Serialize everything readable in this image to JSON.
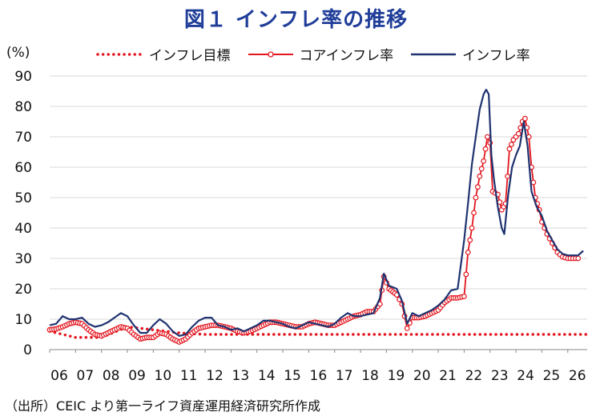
{
  "chart_data": {
    "type": "line",
    "title": "図１ インフレ率の推移",
    "ylabel": "(%)",
    "source": "（出所）CEIC より第一ライフ資産運用経済研究所作成",
    "ylim": [
      0,
      90
    ],
    "yticks": [
      0,
      10,
      20,
      30,
      40,
      50,
      60,
      70,
      80,
      90
    ],
    "xlim": [
      2006.0,
      2026.75
    ],
    "xtick_labels": [
      "06",
      "07",
      "08",
      "09",
      "10",
      "11",
      "12",
      "13",
      "14",
      "15",
      "16",
      "17",
      "18",
      "19",
      "20",
      "21",
      "22",
      "23",
      "24",
      "25",
      "26"
    ],
    "grid": "horizontal",
    "legend_position": "top",
    "series": [
      {
        "name": "インフレ目標",
        "style": "dotted",
        "color": "#e3161f",
        "points": [
          [
            2006.0,
            6.0
          ],
          [
            2006.5,
            5.0
          ],
          [
            2007.0,
            4.0
          ],
          [
            2008.0,
            4.0
          ],
          [
            2009.0,
            7.5
          ],
          [
            2010.0,
            6.5
          ],
          [
            2011.0,
            5.5
          ],
          [
            2012.0,
            5.0
          ],
          [
            2026.75,
            5.0
          ]
        ]
      },
      {
        "name": "コアインフレ率",
        "style": "line-marker",
        "color": "#e3161f",
        "points": [
          [
            2006.0,
            6.5
          ],
          [
            2006.25,
            6.8
          ],
          [
            2006.5,
            7.5
          ],
          [
            2006.75,
            8.5
          ],
          [
            2007.0,
            9.0
          ],
          [
            2007.25,
            8.5
          ],
          [
            2007.5,
            6.5
          ],
          [
            2007.75,
            5.0
          ],
          [
            2008.0,
            4.5
          ],
          [
            2008.25,
            5.5
          ],
          [
            2008.5,
            6.5
          ],
          [
            2008.75,
            7.5
          ],
          [
            2009.0,
            7.0
          ],
          [
            2009.25,
            5.0
          ],
          [
            2009.5,
            3.5
          ],
          [
            2009.75,
            4.0
          ],
          [
            2010.0,
            4.0
          ],
          [
            2010.25,
            5.5
          ],
          [
            2010.5,
            5.0
          ],
          [
            2010.75,
            3.5
          ],
          [
            2011.0,
            2.5
          ],
          [
            2011.25,
            3.5
          ],
          [
            2011.5,
            5.5
          ],
          [
            2011.75,
            7.0
          ],
          [
            2012.0,
            7.5
          ],
          [
            2012.25,
            8.0
          ],
          [
            2012.5,
            8.0
          ],
          [
            2012.75,
            7.5
          ],
          [
            2013.0,
            7.0
          ],
          [
            2013.25,
            6.0
          ],
          [
            2013.5,
            5.5
          ],
          [
            2013.75,
            6.0
          ],
          [
            2014.0,
            7.0
          ],
          [
            2014.25,
            8.0
          ],
          [
            2014.5,
            9.0
          ],
          [
            2014.75,
            9.0
          ],
          [
            2015.0,
            8.5
          ],
          [
            2015.25,
            8.0
          ],
          [
            2015.5,
            7.5
          ],
          [
            2015.75,
            7.5
          ],
          [
            2016.0,
            8.5
          ],
          [
            2016.25,
            9.0
          ],
          [
            2016.5,
            8.5
          ],
          [
            2016.75,
            8.0
          ],
          [
            2017.0,
            8.0
          ],
          [
            2017.25,
            9.0
          ],
          [
            2017.5,
            10.0
          ],
          [
            2017.75,
            11.0
          ],
          [
            2018.0,
            11.5
          ],
          [
            2018.25,
            12.5
          ],
          [
            2018.5,
            12.5
          ],
          [
            2018.75,
            15.0
          ],
          [
            2018.9,
            24.0
          ],
          [
            2019.1,
            20.0
          ],
          [
            2019.4,
            18.0
          ],
          [
            2019.6,
            15.0
          ],
          [
            2019.8,
            7.0
          ],
          [
            2020.0,
            10.5
          ],
          [
            2020.25,
            10.5
          ],
          [
            2020.5,
            11.0
          ],
          [
            2020.75,
            12.0
          ],
          [
            2021.0,
            13.0
          ],
          [
            2021.25,
            15.5
          ],
          [
            2021.5,
            17.0
          ],
          [
            2021.75,
            17.0
          ],
          [
            2022.0,
            17.5
          ],
          [
            2022.15,
            32.0
          ],
          [
            2022.3,
            40.0
          ],
          [
            2022.45,
            50.0
          ],
          [
            2022.6,
            57.0
          ],
          [
            2022.75,
            62.0
          ],
          [
            2022.9,
            70.0
          ],
          [
            2023.0,
            68.0
          ],
          [
            2023.1,
            52.0
          ],
          [
            2023.3,
            51.0
          ],
          [
            2023.45,
            46.0
          ],
          [
            2023.6,
            48.0
          ],
          [
            2023.75,
            66.0
          ],
          [
            2023.9,
            69.0
          ],
          [
            2024.1,
            71.0
          ],
          [
            2024.25,
            75.0
          ],
          [
            2024.35,
            76.0
          ],
          [
            2024.5,
            70.0
          ],
          [
            2024.6,
            60.0
          ],
          [
            2024.75,
            50.0
          ],
          [
            2024.9,
            46.0
          ],
          [
            2025.0,
            42.0
          ],
          [
            2025.2,
            38.0
          ],
          [
            2025.4,
            35.0
          ],
          [
            2025.6,
            32.0
          ],
          [
            2025.8,
            30.5
          ],
          [
            2026.0,
            30.0
          ],
          [
            2026.2,
            30.0
          ],
          [
            2026.4,
            30.0
          ]
        ]
      },
      {
        "name": "インフレ率",
        "style": "line",
        "color": "#1f3370",
        "points": [
          [
            2006.0,
            8.0
          ],
          [
            2006.25,
            8.5
          ],
          [
            2006.5,
            11.0
          ],
          [
            2006.75,
            10.0
          ],
          [
            2007.0,
            10.0
          ],
          [
            2007.25,
            10.5
          ],
          [
            2007.5,
            8.5
          ],
          [
            2007.75,
            7.5
          ],
          [
            2008.0,
            8.0
          ],
          [
            2008.25,
            9.0
          ],
          [
            2008.5,
            10.5
          ],
          [
            2008.75,
            12.0
          ],
          [
            2009.0,
            11.0
          ],
          [
            2009.25,
            8.0
          ],
          [
            2009.5,
            5.5
          ],
          [
            2009.75,
            5.5
          ],
          [
            2010.0,
            8.0
          ],
          [
            2010.25,
            10.0
          ],
          [
            2010.5,
            8.5
          ],
          [
            2010.75,
            6.0
          ],
          [
            2011.0,
            4.5
          ],
          [
            2011.25,
            5.0
          ],
          [
            2011.5,
            7.5
          ],
          [
            2011.75,
            9.5
          ],
          [
            2012.0,
            10.5
          ],
          [
            2012.25,
            10.5
          ],
          [
            2012.5,
            8.0
          ],
          [
            2012.75,
            7.5
          ],
          [
            2013.0,
            6.5
          ],
          [
            2013.25,
            7.0
          ],
          [
            2013.5,
            6.0
          ],
          [
            2013.75,
            7.0
          ],
          [
            2014.0,
            8.0
          ],
          [
            2014.25,
            9.5
          ],
          [
            2014.5,
            9.5
          ],
          [
            2014.75,
            9.0
          ],
          [
            2015.0,
            8.5
          ],
          [
            2015.25,
            7.5
          ],
          [
            2015.5,
            7.0
          ],
          [
            2015.75,
            8.0
          ],
          [
            2016.0,
            9.0
          ],
          [
            2016.25,
            8.5
          ],
          [
            2016.5,
            8.0
          ],
          [
            2016.75,
            7.5
          ],
          [
            2017.0,
            8.5
          ],
          [
            2017.25,
            10.5
          ],
          [
            2017.5,
            12.0
          ],
          [
            2017.75,
            11.0
          ],
          [
            2018.0,
            11.0
          ],
          [
            2018.25,
            11.5
          ],
          [
            2018.5,
            12.0
          ],
          [
            2018.75,
            17.0
          ],
          [
            2018.9,
            25.0
          ],
          [
            2019.1,
            21.0
          ],
          [
            2019.4,
            20.0
          ],
          [
            2019.6,
            16.0
          ],
          [
            2019.8,
            8.5
          ],
          [
            2020.0,
            12.0
          ],
          [
            2020.25,
            11.0
          ],
          [
            2020.5,
            12.0
          ],
          [
            2020.75,
            13.0
          ],
          [
            2021.0,
            14.5
          ],
          [
            2021.25,
            16.5
          ],
          [
            2021.5,
            19.5
          ],
          [
            2021.75,
            20.0
          ],
          [
            2022.0,
            36.0
          ],
          [
            2022.15,
            48.0
          ],
          [
            2022.3,
            61.0
          ],
          [
            2022.45,
            70.0
          ],
          [
            2022.6,
            79.0
          ],
          [
            2022.75,
            84.0
          ],
          [
            2022.85,
            85.5
          ],
          [
            2022.95,
            84.0
          ],
          [
            2023.05,
            64.0
          ],
          [
            2023.15,
            56.0
          ],
          [
            2023.3,
            47.0
          ],
          [
            2023.45,
            40.0
          ],
          [
            2023.55,
            38.0
          ],
          [
            2023.7,
            51.0
          ],
          [
            2023.85,
            60.0
          ],
          [
            2024.0,
            64.0
          ],
          [
            2024.15,
            67.0
          ],
          [
            2024.3,
            75.0
          ],
          [
            2024.45,
            67.0
          ],
          [
            2024.6,
            52.0
          ],
          [
            2024.8,
            47.0
          ],
          [
            2025.0,
            44.0
          ],
          [
            2025.2,
            39.0
          ],
          [
            2025.4,
            36.0
          ],
          [
            2025.6,
            33.0
          ],
          [
            2025.8,
            31.5
          ],
          [
            2026.0,
            31.0
          ],
          [
            2026.2,
            31.0
          ],
          [
            2026.4,
            31.0
          ],
          [
            2026.6,
            32.5
          ]
        ]
      }
    ]
  }
}
